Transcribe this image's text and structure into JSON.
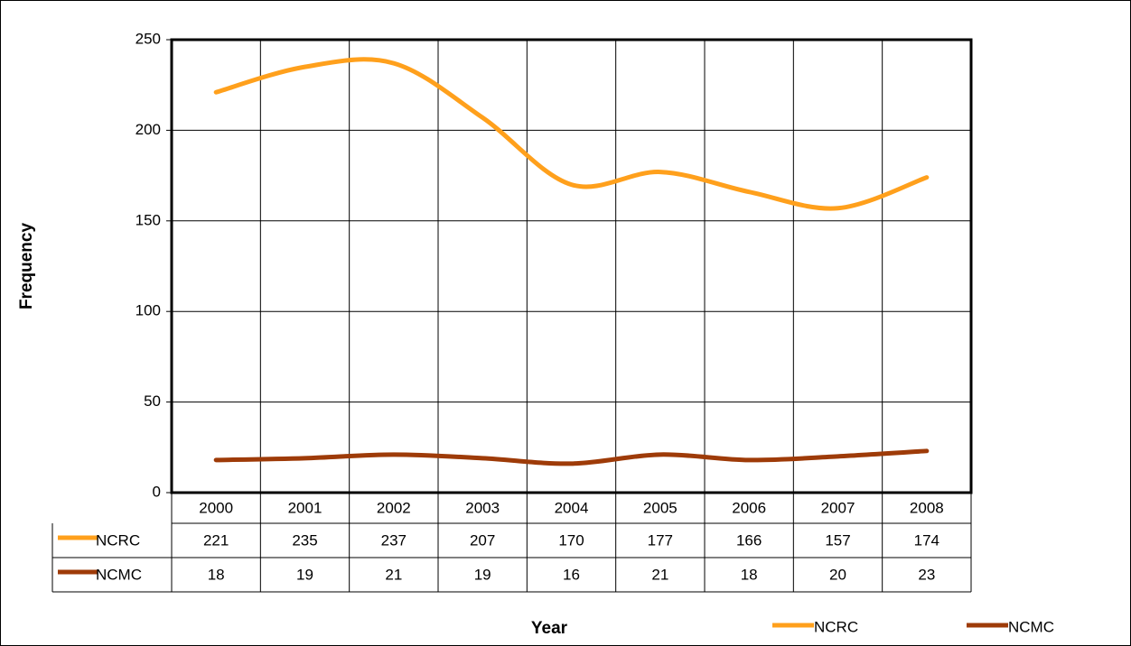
{
  "chart_data": {
    "type": "line",
    "x_label": "Year",
    "y_label": "Frequency",
    "categories": [
      "2000",
      "2001",
      "2002",
      "2003",
      "2004",
      "2005",
      "2006",
      "2007",
      "2008"
    ],
    "series": [
      {
        "name": "NCRC",
        "color": "#ffa01c",
        "values": [
          221,
          235,
          237,
          207,
          170,
          177,
          166,
          157,
          174
        ]
      },
      {
        "name": "NCMC",
        "color": "#9e3b08",
        "values": [
          18,
          19,
          21,
          19,
          16,
          21,
          18,
          20,
          23
        ]
      }
    ],
    "ylim": [
      0,
      250
    ],
    "yticks": [
      0,
      50,
      100,
      150,
      200,
      250
    ],
    "grid": true,
    "smooth": true
  }
}
